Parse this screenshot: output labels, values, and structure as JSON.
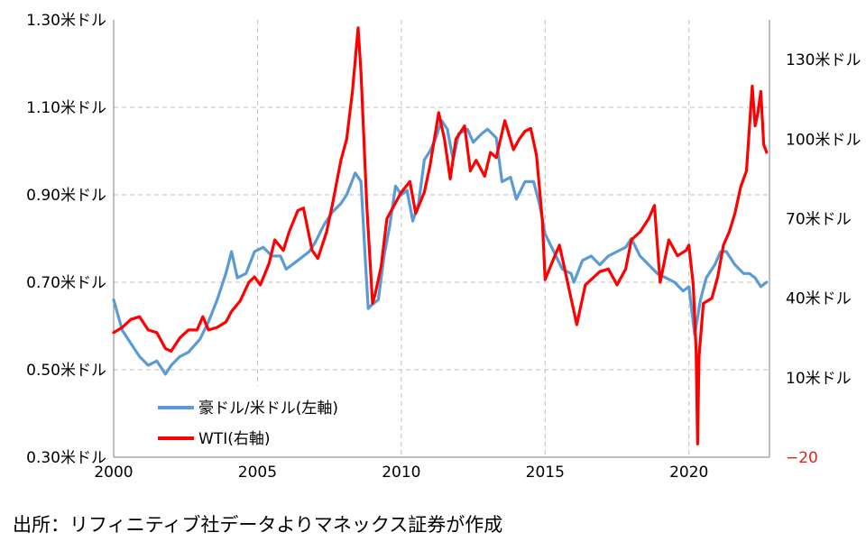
{
  "source": "出所：リフィニティブ社データよりマネックス証券が作成",
  "chart_data": {
    "type": "line",
    "title": "",
    "xlabel": "",
    "ylabel": "",
    "grid": true,
    "legend_position": "bottom-left",
    "x_range": [
      2000,
      2022.8
    ],
    "x_ticks": [
      2000,
      2005,
      2010,
      2015,
      2020
    ],
    "x_tick_labels": [
      "2000",
      "2005",
      "2010",
      "2015",
      "2020"
    ],
    "y_left": {
      "range": [
        0.3,
        1.3
      ],
      "ticks": [
        0.3,
        0.5,
        0.7,
        0.9,
        1.1,
        1.3
      ],
      "tick_labels": [
        "0.30米ドル",
        "0.50米ドル",
        "0.70米ドル",
        "0.90米ドル",
        "1.10米ドル",
        "1.30米ドル"
      ]
    },
    "y_right": {
      "range": [
        -20,
        145
      ],
      "ticks": [
        -20,
        10,
        40,
        70,
        100,
        130
      ],
      "tick_labels": [
        "−20",
        "10米ドル",
        "40米ドル",
        "70米ドル",
        "100米ドル",
        "130米ドル"
      ]
    },
    "series": [
      {
        "name": "豪ドル/米ドル(左軸)",
        "axis": "left",
        "color": "#5b9bd5",
        "points": [
          [
            2000.0,
            0.66
          ],
          [
            2000.3,
            0.59
          ],
          [
            2000.6,
            0.56
          ],
          [
            2000.9,
            0.53
          ],
          [
            2001.2,
            0.51
          ],
          [
            2001.5,
            0.52
          ],
          [
            2001.8,
            0.49
          ],
          [
            2002.0,
            0.51
          ],
          [
            2002.3,
            0.53
          ],
          [
            2002.6,
            0.54
          ],
          [
            2003.0,
            0.57
          ],
          [
            2003.3,
            0.61
          ],
          [
            2003.6,
            0.66
          ],
          [
            2003.9,
            0.72
          ],
          [
            2004.1,
            0.77
          ],
          [
            2004.3,
            0.71
          ],
          [
            2004.6,
            0.72
          ],
          [
            2004.9,
            0.77
          ],
          [
            2005.2,
            0.78
          ],
          [
            2005.5,
            0.76
          ],
          [
            2005.8,
            0.76
          ],
          [
            2006.0,
            0.73
          ],
          [
            2006.4,
            0.75
          ],
          [
            2006.8,
            0.77
          ],
          [
            2007.0,
            0.79
          ],
          [
            2007.3,
            0.83
          ],
          [
            2007.6,
            0.86
          ],
          [
            2007.9,
            0.88
          ],
          [
            2008.1,
            0.9
          ],
          [
            2008.4,
            0.95
          ],
          [
            2008.6,
            0.93
          ],
          [
            2008.75,
            0.75
          ],
          [
            2008.85,
            0.64
          ],
          [
            2009.0,
            0.65
          ],
          [
            2009.2,
            0.66
          ],
          [
            2009.4,
            0.76
          ],
          [
            2009.6,
            0.83
          ],
          [
            2009.8,
            0.92
          ],
          [
            2010.0,
            0.9
          ],
          [
            2010.2,
            0.91
          ],
          [
            2010.4,
            0.84
          ],
          [
            2010.6,
            0.88
          ],
          [
            2010.8,
            0.98
          ],
          [
            2011.0,
            1.0
          ],
          [
            2011.2,
            1.03
          ],
          [
            2011.4,
            1.07
          ],
          [
            2011.6,
            1.05
          ],
          [
            2011.8,
            0.98
          ],
          [
            2012.0,
            1.04
          ],
          [
            2012.3,
            1.05
          ],
          [
            2012.5,
            1.02
          ],
          [
            2012.8,
            1.04
          ],
          [
            2013.0,
            1.05
          ],
          [
            2013.3,
            1.03
          ],
          [
            2013.5,
            0.93
          ],
          [
            2013.8,
            0.94
          ],
          [
            2014.0,
            0.89
          ],
          [
            2014.3,
            0.93
          ],
          [
            2014.6,
            0.93
          ],
          [
            2014.8,
            0.88
          ],
          [
            2015.0,
            0.81
          ],
          [
            2015.3,
            0.77
          ],
          [
            2015.6,
            0.73
          ],
          [
            2015.9,
            0.72
          ],
          [
            2016.0,
            0.7
          ],
          [
            2016.3,
            0.75
          ],
          [
            2016.6,
            0.76
          ],
          [
            2016.9,
            0.74
          ],
          [
            2017.2,
            0.76
          ],
          [
            2017.5,
            0.77
          ],
          [
            2017.8,
            0.78
          ],
          [
            2018.0,
            0.8
          ],
          [
            2018.3,
            0.76
          ],
          [
            2018.6,
            0.74
          ],
          [
            2018.9,
            0.72
          ],
          [
            2019.2,
            0.71
          ],
          [
            2019.5,
            0.7
          ],
          [
            2019.8,
            0.68
          ],
          [
            2020.0,
            0.69
          ],
          [
            2020.2,
            0.58
          ],
          [
            2020.4,
            0.66
          ],
          [
            2020.6,
            0.71
          ],
          [
            2020.9,
            0.74
          ],
          [
            2021.1,
            0.77
          ],
          [
            2021.3,
            0.77
          ],
          [
            2021.6,
            0.74
          ],
          [
            2021.9,
            0.72
          ],
          [
            2022.1,
            0.72
          ],
          [
            2022.3,
            0.71
          ],
          [
            2022.5,
            0.69
          ],
          [
            2022.7,
            0.7
          ]
        ]
      },
      {
        "name": "WTI(右軸)",
        "axis": "right",
        "color": "#ff0000",
        "points": [
          [
            2000.0,
            27
          ],
          [
            2000.3,
            29
          ],
          [
            2000.6,
            32
          ],
          [
            2000.9,
            33
          ],
          [
            2001.2,
            28
          ],
          [
            2001.5,
            27
          ],
          [
            2001.8,
            21
          ],
          [
            2002.0,
            20
          ],
          [
            2002.3,
            25
          ],
          [
            2002.6,
            28
          ],
          [
            2002.9,
            28
          ],
          [
            2003.1,
            33
          ],
          [
            2003.3,
            28
          ],
          [
            2003.6,
            29
          ],
          [
            2003.9,
            31
          ],
          [
            2004.1,
            35
          ],
          [
            2004.4,
            39
          ],
          [
            2004.7,
            46
          ],
          [
            2004.9,
            48
          ],
          [
            2005.1,
            45
          ],
          [
            2005.4,
            53
          ],
          [
            2005.6,
            62
          ],
          [
            2005.9,
            58
          ],
          [
            2006.1,
            65
          ],
          [
            2006.4,
            73
          ],
          [
            2006.6,
            74
          ],
          [
            2006.9,
            58
          ],
          [
            2007.1,
            55
          ],
          [
            2007.4,
            65
          ],
          [
            2007.6,
            75
          ],
          [
            2007.9,
            92
          ],
          [
            2008.1,
            100
          ],
          [
            2008.3,
            118
          ],
          [
            2008.5,
            142
          ],
          [
            2008.6,
            125
          ],
          [
            2008.8,
            75
          ],
          [
            2009.0,
            38
          ],
          [
            2009.1,
            42
          ],
          [
            2009.3,
            52
          ],
          [
            2009.5,
            70
          ],
          [
            2009.8,
            76
          ],
          [
            2010.0,
            80
          ],
          [
            2010.3,
            84
          ],
          [
            2010.5,
            72
          ],
          [
            2010.8,
            80
          ],
          [
            2011.0,
            90
          ],
          [
            2011.3,
            110
          ],
          [
            2011.5,
            100
          ],
          [
            2011.7,
            85
          ],
          [
            2011.9,
            100
          ],
          [
            2012.2,
            105
          ],
          [
            2012.4,
            88
          ],
          [
            2012.6,
            92
          ],
          [
            2012.9,
            86
          ],
          [
            2013.1,
            95
          ],
          [
            2013.3,
            93
          ],
          [
            2013.6,
            107
          ],
          [
            2013.9,
            96
          ],
          [
            2014.1,
            100
          ],
          [
            2014.3,
            103
          ],
          [
            2014.5,
            104
          ],
          [
            2014.7,
            94
          ],
          [
            2014.9,
            70
          ],
          [
            2015.0,
            47
          ],
          [
            2015.3,
            55
          ],
          [
            2015.5,
            60
          ],
          [
            2015.8,
            45
          ],
          [
            2016.0,
            35
          ],
          [
            2016.1,
            30
          ],
          [
            2016.4,
            45
          ],
          [
            2016.6,
            47
          ],
          [
            2016.9,
            50
          ],
          [
            2017.2,
            51
          ],
          [
            2017.5,
            45
          ],
          [
            2017.8,
            51
          ],
          [
            2018.0,
            62
          ],
          [
            2018.3,
            65
          ],
          [
            2018.6,
            70
          ],
          [
            2018.8,
            75
          ],
          [
            2019.0,
            46
          ],
          [
            2019.3,
            62
          ],
          [
            2019.6,
            56
          ],
          [
            2019.9,
            58
          ],
          [
            2020.0,
            60
          ],
          [
            2020.15,
            45
          ],
          [
            2020.25,
            20
          ],
          [
            2020.3,
            -15
          ],
          [
            2020.35,
            18
          ],
          [
            2020.5,
            38
          ],
          [
            2020.8,
            40
          ],
          [
            2021.0,
            48
          ],
          [
            2021.2,
            60
          ],
          [
            2021.4,
            65
          ],
          [
            2021.6,
            72
          ],
          [
            2021.8,
            82
          ],
          [
            2022.0,
            88
          ],
          [
            2022.2,
            120
          ],
          [
            2022.3,
            105
          ],
          [
            2022.4,
            110
          ],
          [
            2022.5,
            118
          ],
          [
            2022.6,
            98
          ],
          [
            2022.7,
            95
          ]
        ]
      }
    ]
  }
}
